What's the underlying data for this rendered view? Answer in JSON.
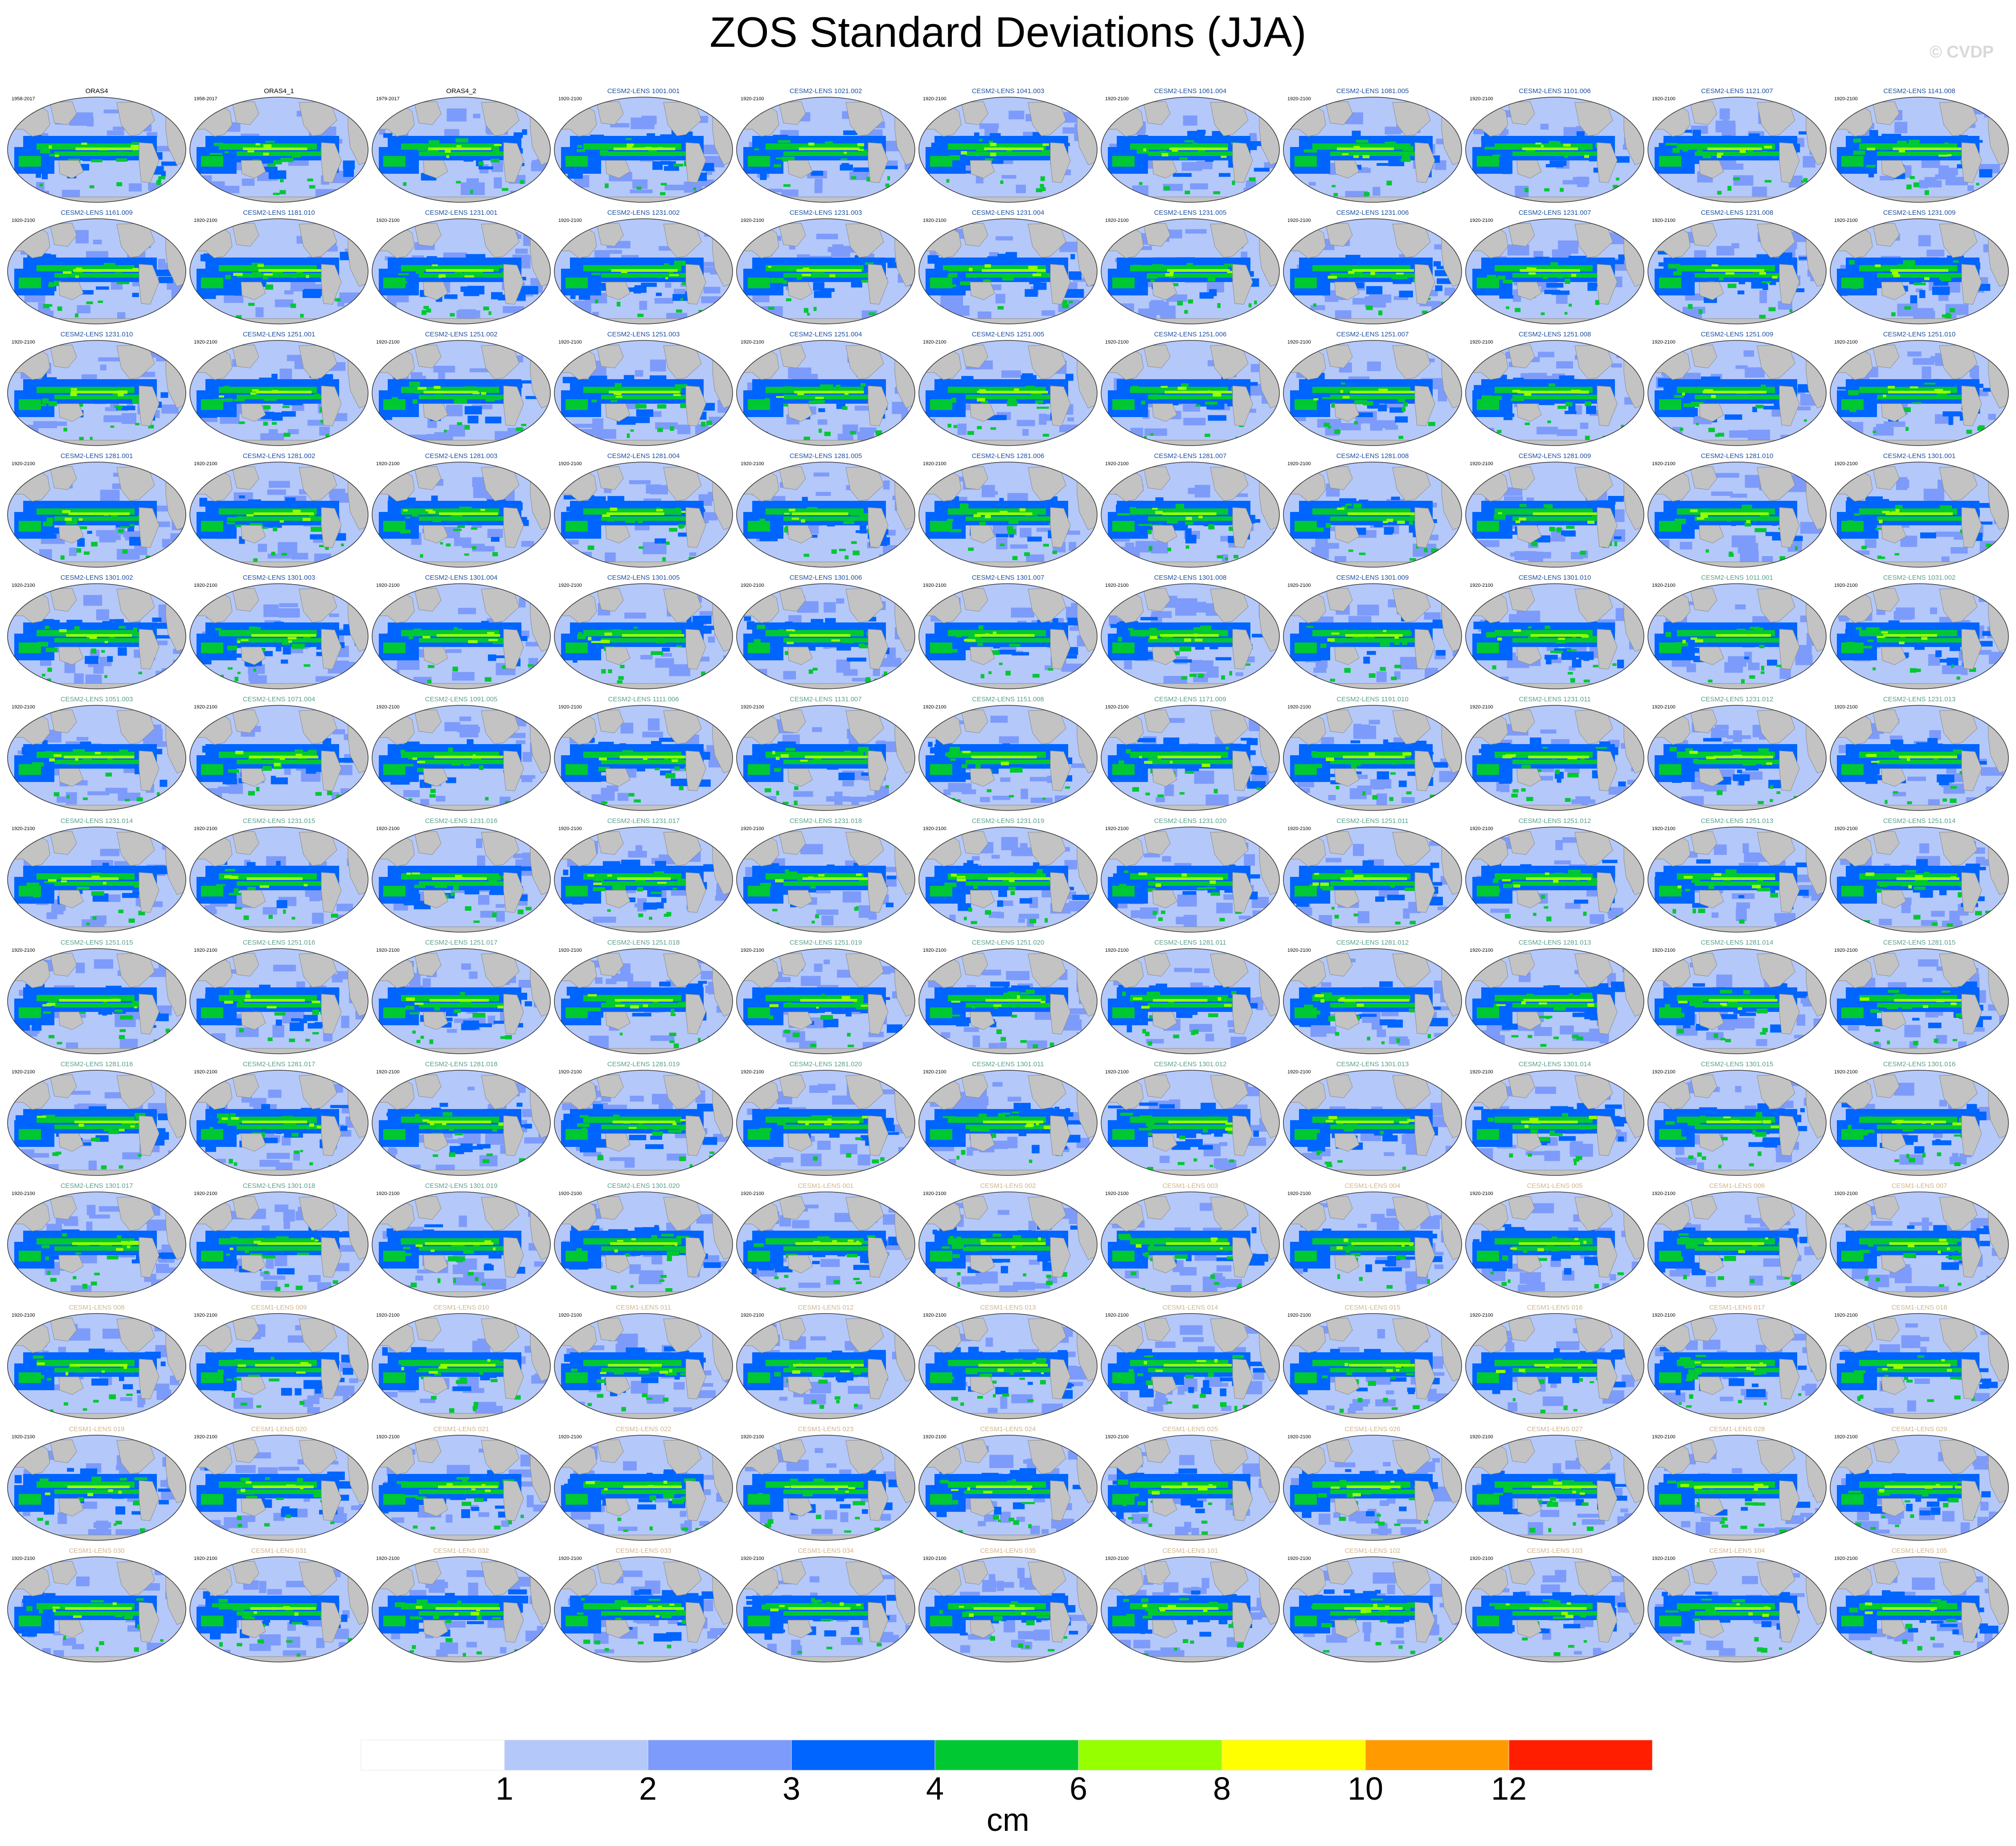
{
  "title": "ZOS Standard Deviations (JJA)",
  "credit": "© CVDP",
  "chart_data": {
    "type": "map-grid",
    "title": "ZOS Standard Deviations (JJA)",
    "projection": "global ellipse (Pacific-centered)",
    "colorbar": {
      "units": "cm",
      "tick_labels": [
        "1",
        "2",
        "3",
        "4",
        "6",
        "8",
        "10",
        "12"
      ],
      "bins": [
        {
          "range": "<1",
          "color": "#ffffff"
        },
        {
          "range": "1-2",
          "color": "#b4c8fa"
        },
        {
          "range": "2-3",
          "color": "#7d9bfa"
        },
        {
          "range": "3-4",
          "color": "#0064ff"
        },
        {
          "range": "4-6",
          "color": "#00c832"
        },
        {
          "range": "6-8",
          "color": "#96ff00"
        },
        {
          "range": "8-10",
          "color": "#ffff00"
        },
        {
          "range": "10-12",
          "color": "#ff9b00"
        },
        {
          "range": ">12",
          "color": "#ff1e00"
        }
      ]
    },
    "panels": [
      {
        "name": "ORAS4",
        "years": "1958-2017",
        "group": "obs"
      },
      {
        "name": "ORAS4_1",
        "years": "1958-2017",
        "group": "obs"
      },
      {
        "name": "ORAS4_2",
        "years": "1979-2017",
        "group": "obs"
      },
      {
        "name": "CESM2-LENS 1001.001",
        "years": "1920-2100",
        "group": "cesm2a"
      },
      {
        "name": "CESM2-LENS 1021.002",
        "years": "1920-2100",
        "group": "cesm2a"
      },
      {
        "name": "CESM2-LENS 1041.003",
        "years": "1920-2100",
        "group": "cesm2a"
      },
      {
        "name": "CESM2-LENS 1061.004",
        "years": "1920-2100",
        "group": "cesm2a"
      },
      {
        "name": "CESM2-LENS 1081.005",
        "years": "1920-2100",
        "group": "cesm2a"
      },
      {
        "name": "CESM2-LENS 1101.006",
        "years": "1920-2100",
        "group": "cesm2a"
      },
      {
        "name": "CESM2-LENS 1121.007",
        "years": "1920-2100",
        "group": "cesm2a"
      },
      {
        "name": "CESM2-LENS 1141.008",
        "years": "1920-2100",
        "group": "cesm2a"
      },
      {
        "name": "CESM2-LENS 1161.009",
        "years": "1920-2100",
        "group": "cesm2a"
      },
      {
        "name": "CESM2-LENS 1181.010",
        "years": "1920-2100",
        "group": "cesm2a"
      },
      {
        "name": "CESM2-LENS 1231.001",
        "years": "1920-2100",
        "group": "cesm2a"
      },
      {
        "name": "CESM2-LENS 1231.002",
        "years": "1920-2100",
        "group": "cesm2a"
      },
      {
        "name": "CESM2-LENS 1231.003",
        "years": "1920-2100",
        "group": "cesm2a"
      },
      {
        "name": "CESM2-LENS 1231.004",
        "years": "1920-2100",
        "group": "cesm2a"
      },
      {
        "name": "CESM2-LENS 1231.005",
        "years": "1920-2100",
        "group": "cesm2a"
      },
      {
        "name": "CESM2-LENS 1231.006",
        "years": "1920-2100",
        "group": "cesm2a"
      },
      {
        "name": "CESM2-LENS 1231.007",
        "years": "1920-2100",
        "group": "cesm2a"
      },
      {
        "name": "CESM2-LENS 1231.008",
        "years": "1920-2100",
        "group": "cesm2a"
      },
      {
        "name": "CESM2-LENS 1231.009",
        "years": "1920-2100",
        "group": "cesm2a"
      },
      {
        "name": "CESM2-LENS 1231.010",
        "years": "1920-2100",
        "group": "cesm2a"
      },
      {
        "name": "CESM2-LENS 1251.001",
        "years": "1920-2100",
        "group": "cesm2a"
      },
      {
        "name": "CESM2-LENS 1251.002",
        "years": "1920-2100",
        "group": "cesm2a"
      },
      {
        "name": "CESM2-LENS 1251.003",
        "years": "1920-2100",
        "group": "cesm2a"
      },
      {
        "name": "CESM2-LENS 1251.004",
        "years": "1920-2100",
        "group": "cesm2a"
      },
      {
        "name": "CESM2-LENS 1251.005",
        "years": "1920-2100",
        "group": "cesm2a"
      },
      {
        "name": "CESM2-LENS 1251.006",
        "years": "1920-2100",
        "group": "cesm2a"
      },
      {
        "name": "CESM2-LENS 1251.007",
        "years": "1920-2100",
        "group": "cesm2a"
      },
      {
        "name": "CESM2-LENS 1251.008",
        "years": "1920-2100",
        "group": "cesm2a"
      },
      {
        "name": "CESM2-LENS 1251.009",
        "years": "1920-2100",
        "group": "cesm2a"
      },
      {
        "name": "CESM2-LENS 1251.010",
        "years": "1920-2100",
        "group": "cesm2a"
      },
      {
        "name": "CESM2-LENS 1281.001",
        "years": "1920-2100",
        "group": "cesm2a"
      },
      {
        "name": "CESM2-LENS 1281.002",
        "years": "1920-2100",
        "group": "cesm2a"
      },
      {
        "name": "CESM2-LENS 1281.003",
        "years": "1920-2100",
        "group": "cesm2a"
      },
      {
        "name": "CESM2-LENS 1281.004",
        "years": "1920-2100",
        "group": "cesm2a"
      },
      {
        "name": "CESM2-LENS 1281.005",
        "years": "1920-2100",
        "group": "cesm2a"
      },
      {
        "name": "CESM2-LENS 1281.006",
        "years": "1920-2100",
        "group": "cesm2a"
      },
      {
        "name": "CESM2-LENS 1281.007",
        "years": "1920-2100",
        "group": "cesm2a"
      },
      {
        "name": "CESM2-LENS 1281.008",
        "years": "1920-2100",
        "group": "cesm2a"
      },
      {
        "name": "CESM2-LENS 1281.009",
        "years": "1920-2100",
        "group": "cesm2a"
      },
      {
        "name": "CESM2-LENS 1281.010",
        "years": "1920-2100",
        "group": "cesm2a"
      },
      {
        "name": "CESM2-LENS 1301.001",
        "years": "1920-2100",
        "group": "cesm2a"
      },
      {
        "name": "CESM2-LENS 1301.002",
        "years": "1920-2100",
        "group": "cesm2a"
      },
      {
        "name": "CESM2-LENS 1301.003",
        "years": "1920-2100",
        "group": "cesm2a"
      },
      {
        "name": "CESM2-LENS 1301.004",
        "years": "1920-2100",
        "group": "cesm2a"
      },
      {
        "name": "CESM2-LENS 1301.005",
        "years": "1920-2100",
        "group": "cesm2a"
      },
      {
        "name": "CESM2-LENS 1301.006",
        "years": "1920-2100",
        "group": "cesm2a"
      },
      {
        "name": "CESM2-LENS 1301.007",
        "years": "1920-2100",
        "group": "cesm2a"
      },
      {
        "name": "CESM2-LENS 1301.008",
        "years": "1920-2100",
        "group": "cesm2a"
      },
      {
        "name": "CESM2-LENS 1301.009",
        "years": "1920-2100",
        "group": "cesm2a"
      },
      {
        "name": "CESM2-LENS 1301.010",
        "years": "1920-2100",
        "group": "cesm2a"
      },
      {
        "name": "CESM2-LENS 1011.001",
        "years": "1920-2100",
        "group": "cesm2b"
      },
      {
        "name": "CESM2-LENS 1031.002",
        "years": "1920-2100",
        "group": "cesm2b"
      },
      {
        "name": "CESM2-LENS 1051.003",
        "years": "1920-2100",
        "group": "cesm2b"
      },
      {
        "name": "CESM2-LENS 1071.004",
        "years": "1920-2100",
        "group": "cesm2b"
      },
      {
        "name": "CESM2-LENS 1091.005",
        "years": "1920-2100",
        "group": "cesm2b"
      },
      {
        "name": "CESM2-LENS 1111.006",
        "years": "1920-2100",
        "group": "cesm2b"
      },
      {
        "name": "CESM2-LENS 1131.007",
        "years": "1920-2100",
        "group": "cesm2b"
      },
      {
        "name": "CESM2-LENS 1151.008",
        "years": "1920-2100",
        "group": "cesm2b"
      },
      {
        "name": "CESM2-LENS 1171.009",
        "years": "1920-2100",
        "group": "cesm2b"
      },
      {
        "name": "CESM2-LENS 1191.010",
        "years": "1920-2100",
        "group": "cesm2b"
      },
      {
        "name": "CESM2-LENS 1231.011",
        "years": "1920-2100",
        "group": "cesm2b"
      },
      {
        "name": "CESM2-LENS 1231.012",
        "years": "1920-2100",
        "group": "cesm2b"
      },
      {
        "name": "CESM2-LENS 1231.013",
        "years": "1920-2100",
        "group": "cesm2b"
      },
      {
        "name": "CESM2-LENS 1231.014",
        "years": "1920-2100",
        "group": "cesm2b"
      },
      {
        "name": "CESM2-LENS 1231.015",
        "years": "1920-2100",
        "group": "cesm2b"
      },
      {
        "name": "CESM2-LENS 1231.016",
        "years": "1920-2100",
        "group": "cesm2b"
      },
      {
        "name": "CESM2-LENS 1231.017",
        "years": "1920-2100",
        "group": "cesm2b"
      },
      {
        "name": "CESM2-LENS 1231.018",
        "years": "1920-2100",
        "group": "cesm2b"
      },
      {
        "name": "CESM2-LENS 1231.019",
        "years": "1920-2100",
        "group": "cesm2b"
      },
      {
        "name": "CESM2-LENS 1231.020",
        "years": "1920-2100",
        "group": "cesm2b"
      },
      {
        "name": "CESM2-LENS 1251.011",
        "years": "1920-2100",
        "group": "cesm2b"
      },
      {
        "name": "CESM2-LENS 1251.012",
        "years": "1920-2100",
        "group": "cesm2b"
      },
      {
        "name": "CESM2-LENS 1251.013",
        "years": "1920-2100",
        "group": "cesm2b"
      },
      {
        "name": "CESM2-LENS 1251.014",
        "years": "1920-2100",
        "group": "cesm2b"
      },
      {
        "name": "CESM2-LENS 1251.015",
        "years": "1920-2100",
        "group": "cesm2b"
      },
      {
        "name": "CESM2-LENS 1251.016",
        "years": "1920-2100",
        "group": "cesm2b"
      },
      {
        "name": "CESM2-LENS 1251.017",
        "years": "1920-2100",
        "group": "cesm2b"
      },
      {
        "name": "CESM2-LENS 1251.018",
        "years": "1920-2100",
        "group": "cesm2b"
      },
      {
        "name": "CESM2-LENS 1251.019",
        "years": "1920-2100",
        "group": "cesm2b"
      },
      {
        "name": "CESM2-LENS 1251.020",
        "years": "1920-2100",
        "group": "cesm2b"
      },
      {
        "name": "CESM2-LENS 1281.011",
        "years": "1920-2100",
        "group": "cesm2b"
      },
      {
        "name": "CESM2-LENS 1281.012",
        "years": "1920-2100",
        "group": "cesm2b"
      },
      {
        "name": "CESM2-LENS 1281.013",
        "years": "1920-2100",
        "group": "cesm2b"
      },
      {
        "name": "CESM2-LENS 1281.014",
        "years": "1920-2100",
        "group": "cesm2b"
      },
      {
        "name": "CESM2-LENS 1281.015",
        "years": "1920-2100",
        "group": "cesm2b"
      },
      {
        "name": "CESM2-LENS 1281.016",
        "years": "1920-2100",
        "group": "cesm2b"
      },
      {
        "name": "CESM2-LENS 1281.017",
        "years": "1920-2100",
        "group": "cesm2b"
      },
      {
        "name": "CESM2-LENS 1281.018",
        "years": "1920-2100",
        "group": "cesm2b"
      },
      {
        "name": "CESM2-LENS 1281.019",
        "years": "1920-2100",
        "group": "cesm2b"
      },
      {
        "name": "CESM2-LENS 1281.020",
        "years": "1920-2100",
        "group": "cesm2b"
      },
      {
        "name": "CESM2-LENS 1301.011",
        "years": "1920-2100",
        "group": "cesm2b"
      },
      {
        "name": "CESM2-LENS 1301.012",
        "years": "1920-2100",
        "group": "cesm2b"
      },
      {
        "name": "CESM2-LENS 1301.013",
        "years": "1920-2100",
        "group": "cesm2b"
      },
      {
        "name": "CESM2-LENS 1301.014",
        "years": "1920-2100",
        "group": "cesm2b"
      },
      {
        "name": "CESM2-LENS 1301.015",
        "years": "1920-2100",
        "group": "cesm2b"
      },
      {
        "name": "CESM2-LENS 1301.016",
        "years": "1920-2100",
        "group": "cesm2b"
      },
      {
        "name": "CESM2-LENS 1301.017",
        "years": "1920-2100",
        "group": "cesm2b"
      },
      {
        "name": "CESM2-LENS 1301.018",
        "years": "1920-2100",
        "group": "cesm2b"
      },
      {
        "name": "CESM2-LENS 1301.019",
        "years": "1920-2100",
        "group": "cesm2b"
      },
      {
        "name": "CESM2-LENS 1301.020",
        "years": "1920-2100",
        "group": "cesm2b"
      },
      {
        "name": "CESM1-LENS 001",
        "years": "1920-2100",
        "group": "cesm1"
      },
      {
        "name": "CESM1-LENS 002",
        "years": "1920-2100",
        "group": "cesm1"
      },
      {
        "name": "CESM1-LENS 003",
        "years": "1920-2100",
        "group": "cesm1"
      },
      {
        "name": "CESM1-LENS 004",
        "years": "1920-2100",
        "group": "cesm1"
      },
      {
        "name": "CESM1-LENS 005",
        "years": "1920-2100",
        "group": "cesm1"
      },
      {
        "name": "CESM1-LENS 006",
        "years": "1920-2100",
        "group": "cesm1"
      },
      {
        "name": "CESM1-LENS 007",
        "years": "1920-2100",
        "group": "cesm1"
      },
      {
        "name": "CESM1-LENS 008",
        "years": "1920-2100",
        "group": "cesm1"
      },
      {
        "name": "CESM1-LENS 009",
        "years": "1920-2100",
        "group": "cesm1"
      },
      {
        "name": "CESM1-LENS 010",
        "years": "1920-2100",
        "group": "cesm1"
      },
      {
        "name": "CESM1-LENS 011",
        "years": "1920-2100",
        "group": "cesm1"
      },
      {
        "name": "CESM1-LENS 012",
        "years": "1920-2100",
        "group": "cesm1"
      },
      {
        "name": "CESM1-LENS 013",
        "years": "1920-2100",
        "group": "cesm1"
      },
      {
        "name": "CESM1-LENS 014",
        "years": "1920-2100",
        "group": "cesm1"
      },
      {
        "name": "CESM1-LENS 015",
        "years": "1920-2100",
        "group": "cesm1"
      },
      {
        "name": "CESM1-LENS 016",
        "years": "1920-2100",
        "group": "cesm1"
      },
      {
        "name": "CESM1-LENS 017",
        "years": "1920-2100",
        "group": "cesm1"
      },
      {
        "name": "CESM1-LENS 018",
        "years": "1920-2100",
        "group": "cesm1"
      },
      {
        "name": "CESM1-LENS 019",
        "years": "1920-2100",
        "group": "cesm1"
      },
      {
        "name": "CESM1-LENS 020",
        "years": "1920-2100",
        "group": "cesm1"
      },
      {
        "name": "CESM1-LENS 021",
        "years": "1920-2100",
        "group": "cesm1"
      },
      {
        "name": "CESM1-LENS 022",
        "years": "1920-2100",
        "group": "cesm1"
      },
      {
        "name": "CESM1-LENS 023",
        "years": "1920-2100",
        "group": "cesm1"
      },
      {
        "name": "CESM1-LENS 024",
        "years": "1920-2100",
        "group": "cesm1"
      },
      {
        "name": "CESM1-LENS 025",
        "years": "1920-2100",
        "group": "cesm1"
      },
      {
        "name": "CESM1-LENS 026",
        "years": "1920-2100",
        "group": "cesm1"
      },
      {
        "name": "CESM1-LENS 027",
        "years": "1920-2100",
        "group": "cesm1"
      },
      {
        "name": "CESM1-LENS 028",
        "years": "1920-2100",
        "group": "cesm1"
      },
      {
        "name": "CESM1-LENS 029",
        "years": "1920-2100",
        "group": "cesm1"
      },
      {
        "name": "CESM1-LENS 030",
        "years": "1920-2100",
        "group": "cesm1"
      },
      {
        "name": "CESM1-LENS 031",
        "years": "1920-2100",
        "group": "cesm1"
      },
      {
        "name": "CESM1-LENS 032",
        "years": "1920-2100",
        "group": "cesm1"
      },
      {
        "name": "CESM1-LENS 033",
        "years": "1920-2100",
        "group": "cesm1"
      },
      {
        "name": "CESM1-LENS 034",
        "years": "1920-2100",
        "group": "cesm1"
      },
      {
        "name": "CESM1-LENS 035",
        "years": "1920-2100",
        "group": "cesm1"
      },
      {
        "name": "CESM1-LENS 101",
        "years": "1920-2100",
        "group": "cesm1"
      },
      {
        "name": "CESM1-LENS 102",
        "years": "1920-2100",
        "group": "cesm1"
      },
      {
        "name": "CESM1-LENS 103",
        "years": "1920-2100",
        "group": "cesm1"
      },
      {
        "name": "CESM1-LENS 104",
        "years": "1920-2100",
        "group": "cesm1"
      },
      {
        "name": "CESM1-LENS 105",
        "years": "1920-2100",
        "group": "cesm1"
      }
    ]
  },
  "style": {
    "label_colors": {
      "obs": "#000000",
      "cesm2a": "#1e50a0",
      "cesm2b": "#5aa08c",
      "cesm1": "#d2b48c"
    },
    "land_color": "#c3c3c3",
    "outline_color": "#333333"
  }
}
